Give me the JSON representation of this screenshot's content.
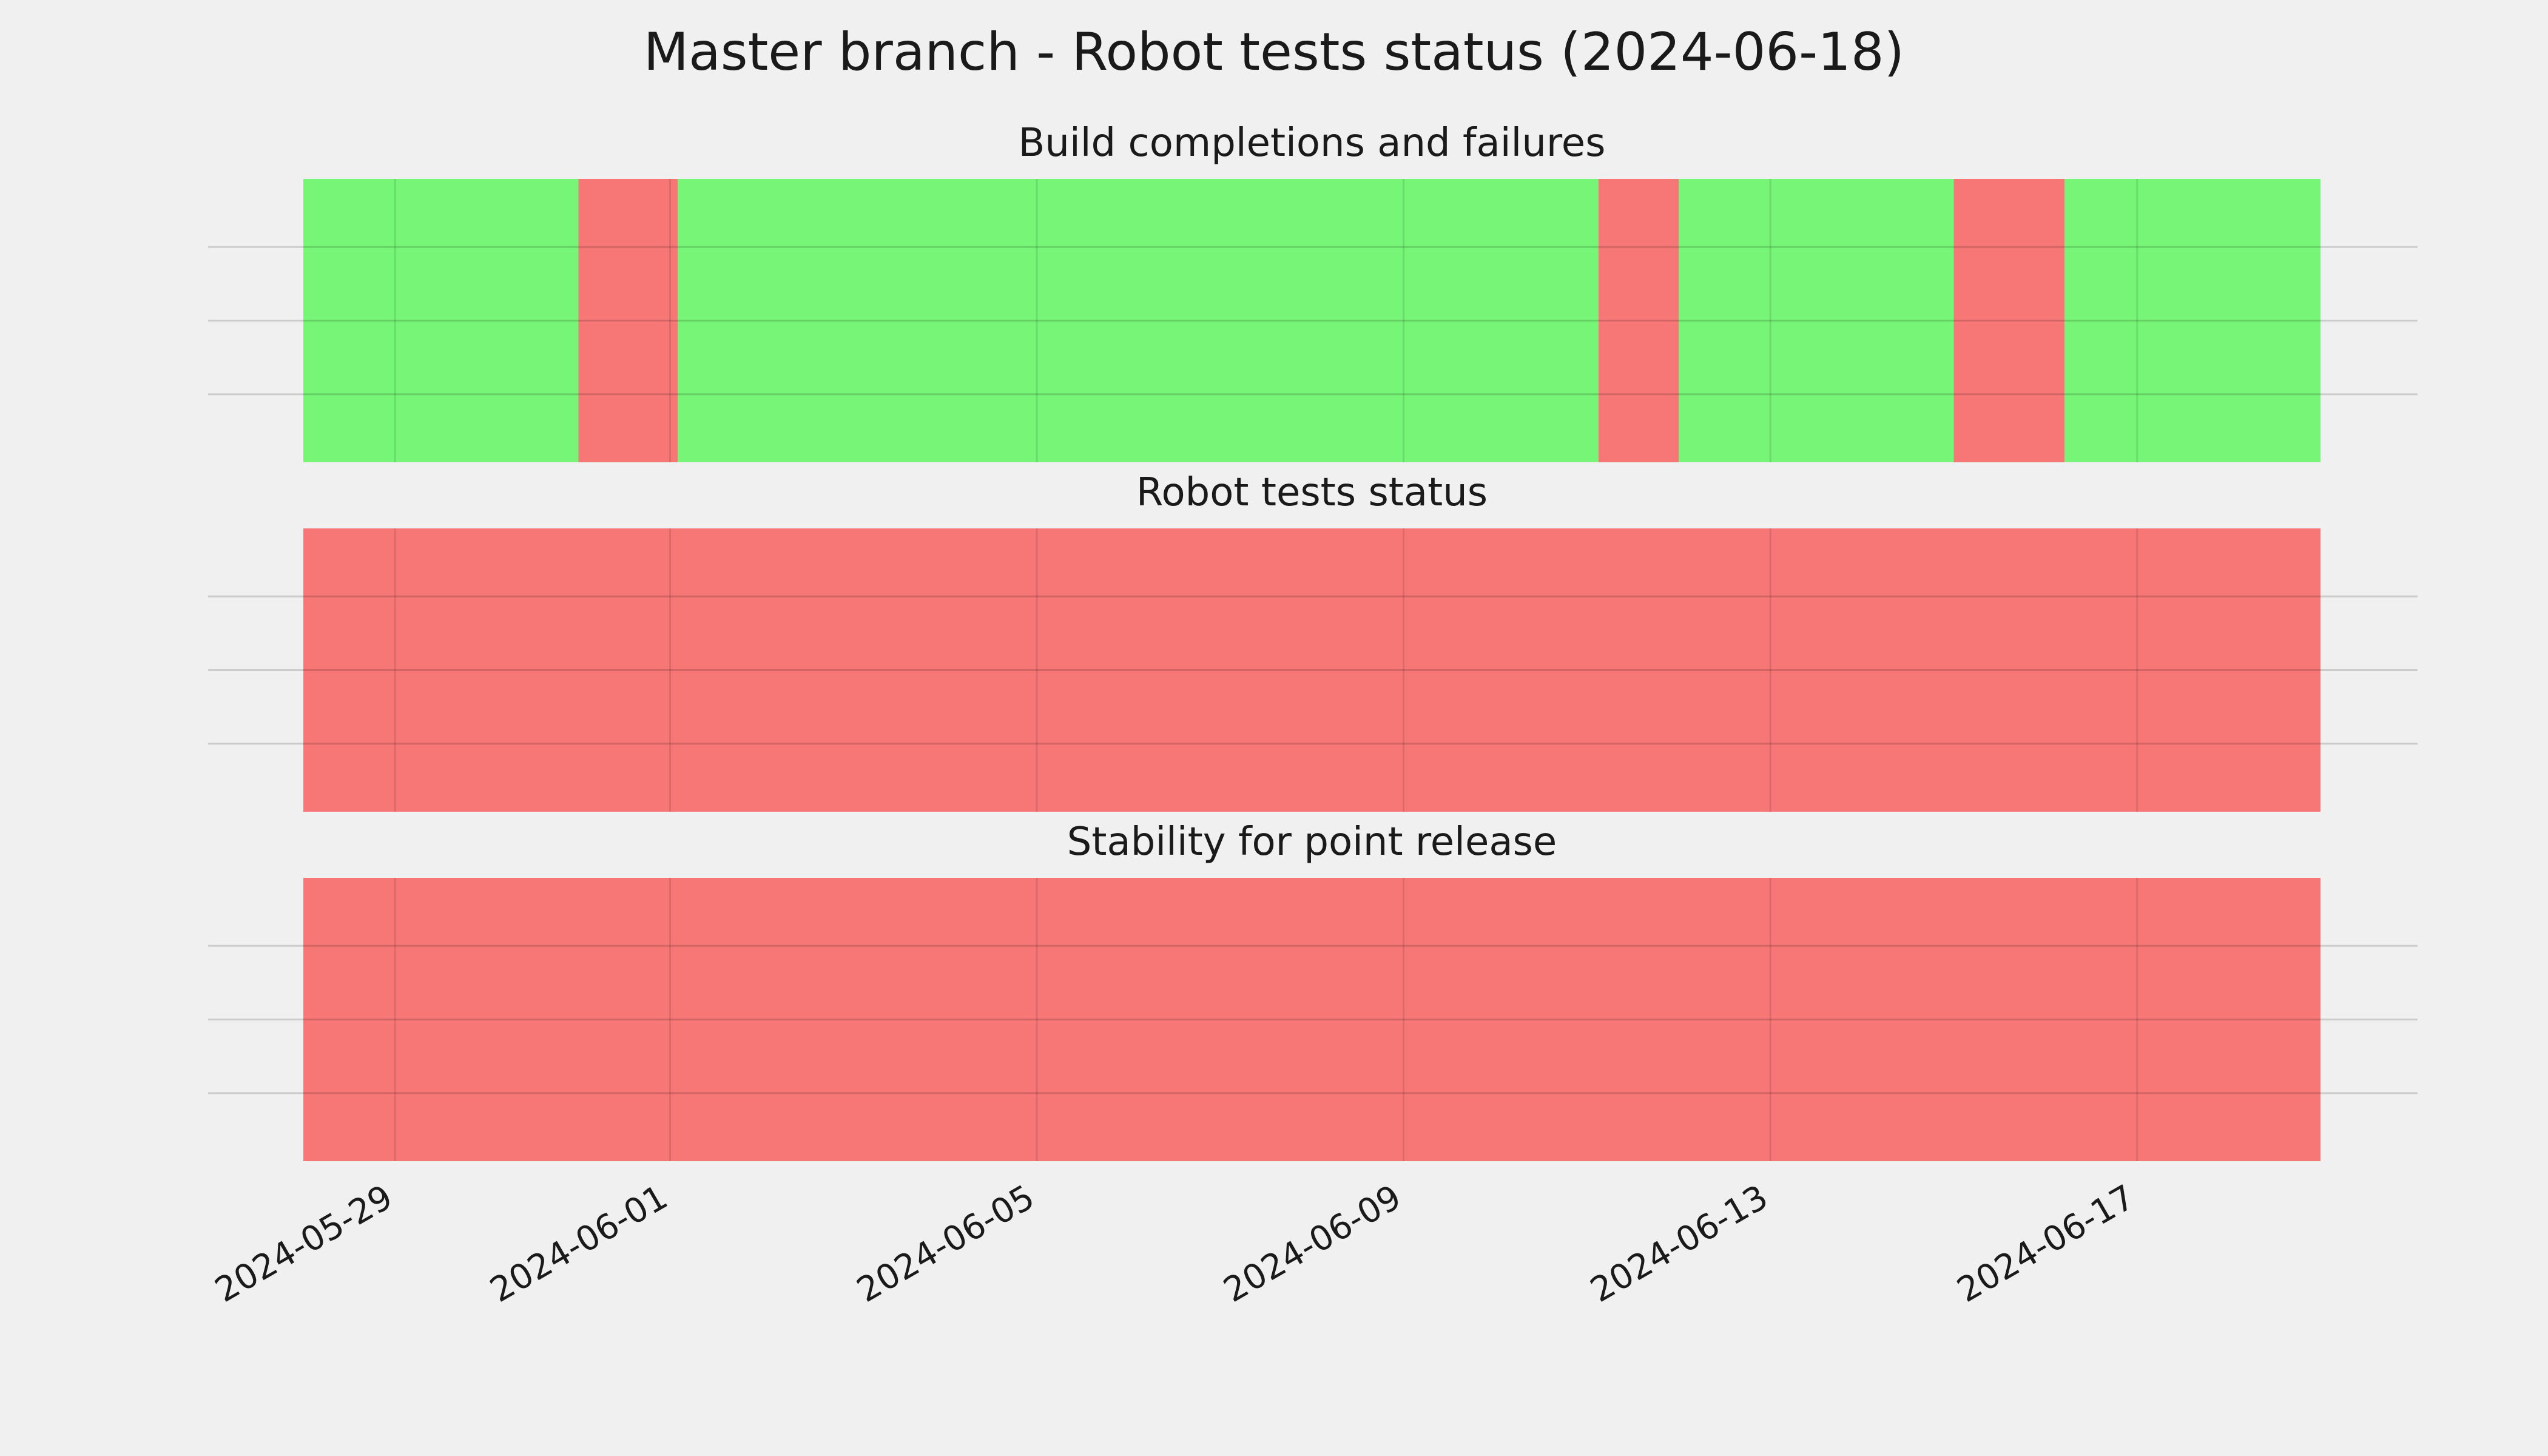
{
  "chart_data": {
    "type": "timeline",
    "title": "Master branch - Robot tests status (2024-06-18)",
    "xlim": [
      "2024-05-28",
      "2024-06-19"
    ],
    "xticks": [
      "2024-05-29",
      "2024-06-01",
      "2024-06-05",
      "2024-06-09",
      "2024-06-13",
      "2024-06-17"
    ],
    "grid": true,
    "status_colors": {
      "pass": "#76f576",
      "fail": "#f77676"
    },
    "panels": [
      {
        "title": "Build completions and failures",
        "segments": [
          {
            "start": "2024-05-28",
            "end": "2024-05-31",
            "status": "pass"
          },
          {
            "start": "2024-05-31",
            "end": "2024-06-01 02:00",
            "status": "fail"
          },
          {
            "start": "2024-06-01 02:00",
            "end": "2024-06-11 03:00",
            "status": "pass"
          },
          {
            "start": "2024-06-11 03:00",
            "end": "2024-06-12",
            "status": "fail"
          },
          {
            "start": "2024-06-12",
            "end": "2024-06-15",
            "status": "pass"
          },
          {
            "start": "2024-06-15",
            "end": "2024-06-16 05:00",
            "status": "fail"
          },
          {
            "start": "2024-06-16 05:00",
            "end": "2024-06-19",
            "status": "pass"
          }
        ]
      },
      {
        "title": "Robot tests status",
        "segments": [
          {
            "start": "2024-05-28",
            "end": "2024-06-19",
            "status": "fail"
          }
        ]
      },
      {
        "title": "Stability for point release",
        "segments": [
          {
            "start": "2024-05-28",
            "end": "2024-06-19",
            "status": "fail"
          }
        ]
      }
    ]
  }
}
